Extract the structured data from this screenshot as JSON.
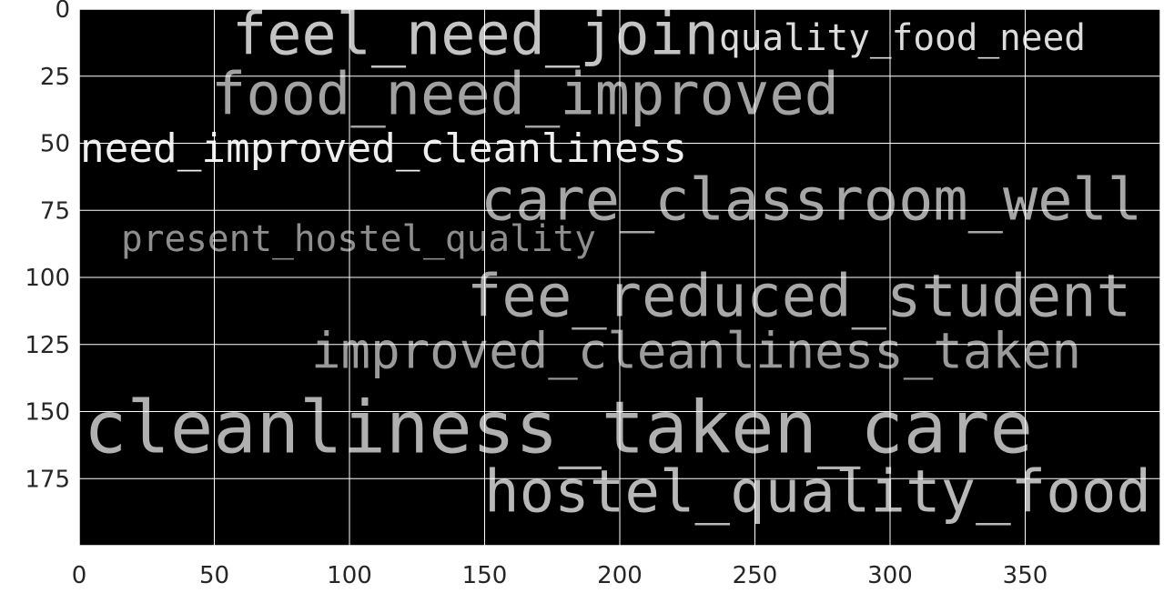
{
  "chart_data": {
    "type": "wordcloud",
    "words": [
      {
        "text": "feel_need_join",
        "color": "#c4c4c4"
      },
      {
        "text": "quality_food_need",
        "color": "#dcdcdc"
      },
      {
        "text": "food_need_improved",
        "color": "#a2a2a2"
      },
      {
        "text": "need_improved_cleanliness",
        "color": "#efefef"
      },
      {
        "text": "care_classroom_well",
        "color": "#a6a6a6"
      },
      {
        "text": "present_hostel_quality",
        "color": "#8e8e8e"
      },
      {
        "text": "fee_reduced_student",
        "color": "#a8a8a8"
      },
      {
        "text": "improved_cleanliness_taken",
        "color": "#9a9a9a"
      },
      {
        "text": "cleanliness_taken_care",
        "color": "#b0b0b0"
      },
      {
        "text": "hostel_quality_food",
        "color": "#b8b8b8"
      }
    ],
    "background": "#000000",
    "xlim": [
      0,
      400
    ],
    "xticks": [
      0,
      50,
      100,
      150,
      200,
      250,
      300,
      350
    ],
    "ylim": [
      200,
      0
    ],
    "yticks": [
      0,
      25,
      50,
      75,
      100,
      125,
      150,
      175
    ],
    "grid": true
  }
}
